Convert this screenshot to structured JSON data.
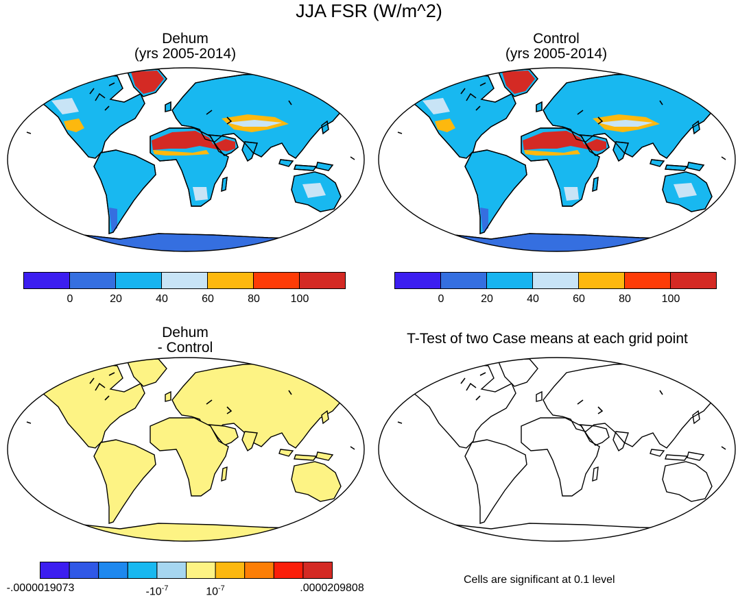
{
  "figure": {
    "title": "JJA FSR (W/m^2)"
  },
  "panels": {
    "dehum": {
      "title_line1": "Dehum",
      "title_line2": "(yrs 2005-2014)"
    },
    "control": {
      "title_line1": "Control",
      "title_line2": "(yrs 2005-2014)"
    },
    "diff": {
      "title_line1": "Dehum",
      "title_line2": "- Control"
    },
    "ttest": {
      "title": "T-Test of two Case means at each grid point",
      "note": "Cells are significant at 0.1 level"
    }
  },
  "colorbar_main": {
    "colors": [
      "#3c1ef0",
      "#356fe0",
      "#18b4f0",
      "#c8e4f6",
      "#fdb80e",
      "#fd3c07",
      "#d42a24"
    ],
    "tick_labels": [
      "0",
      "20",
      "40",
      "60",
      "80",
      "100"
    ]
  },
  "colorbar_diff": {
    "colors": [
      "#3c1ef0",
      "#3058e6",
      "#1e88ee",
      "#18b8f0",
      "#a6d6f0",
      "#fdf384",
      "#fcb810",
      "#fc7e06",
      "#fa1e0a",
      "#d42a24"
    ],
    "tick_labels": [
      {
        "base": "-.0000019073",
        "exp": ""
      },
      {
        "base": "-10",
        "exp": "-7"
      },
      {
        "base": "10",
        "exp": "-7"
      },
      {
        "base": ".0000209808",
        "exp": ""
      }
    ]
  },
  "map_colors": {
    "ocean": "#ffffff",
    "land_main": "#18b8f0",
    "desert_hot": "#d42a24",
    "desert_warm": "#fdb80e",
    "sparse": "#c8e4f6",
    "ice_low": "#356fe0",
    "diff_fill": "#fdf384",
    "coast": "#000000"
  },
  "chart_data": {
    "type": "heatmap",
    "title": "JJA FSR (W/m^2)",
    "panels": [
      "Dehum (yrs 2005-2014)",
      "Control (yrs 2005-2014)",
      "Dehum - Control",
      "T-Test of two Case means at each grid point"
    ],
    "main_levels": [
      0,
      20,
      40,
      60,
      80,
      100
    ],
    "diff_levels": [
      -1.9073e-06,
      -1e-07,
      1e-07,
      2.09808e-05
    ],
    "units": "W/m^2"
  }
}
